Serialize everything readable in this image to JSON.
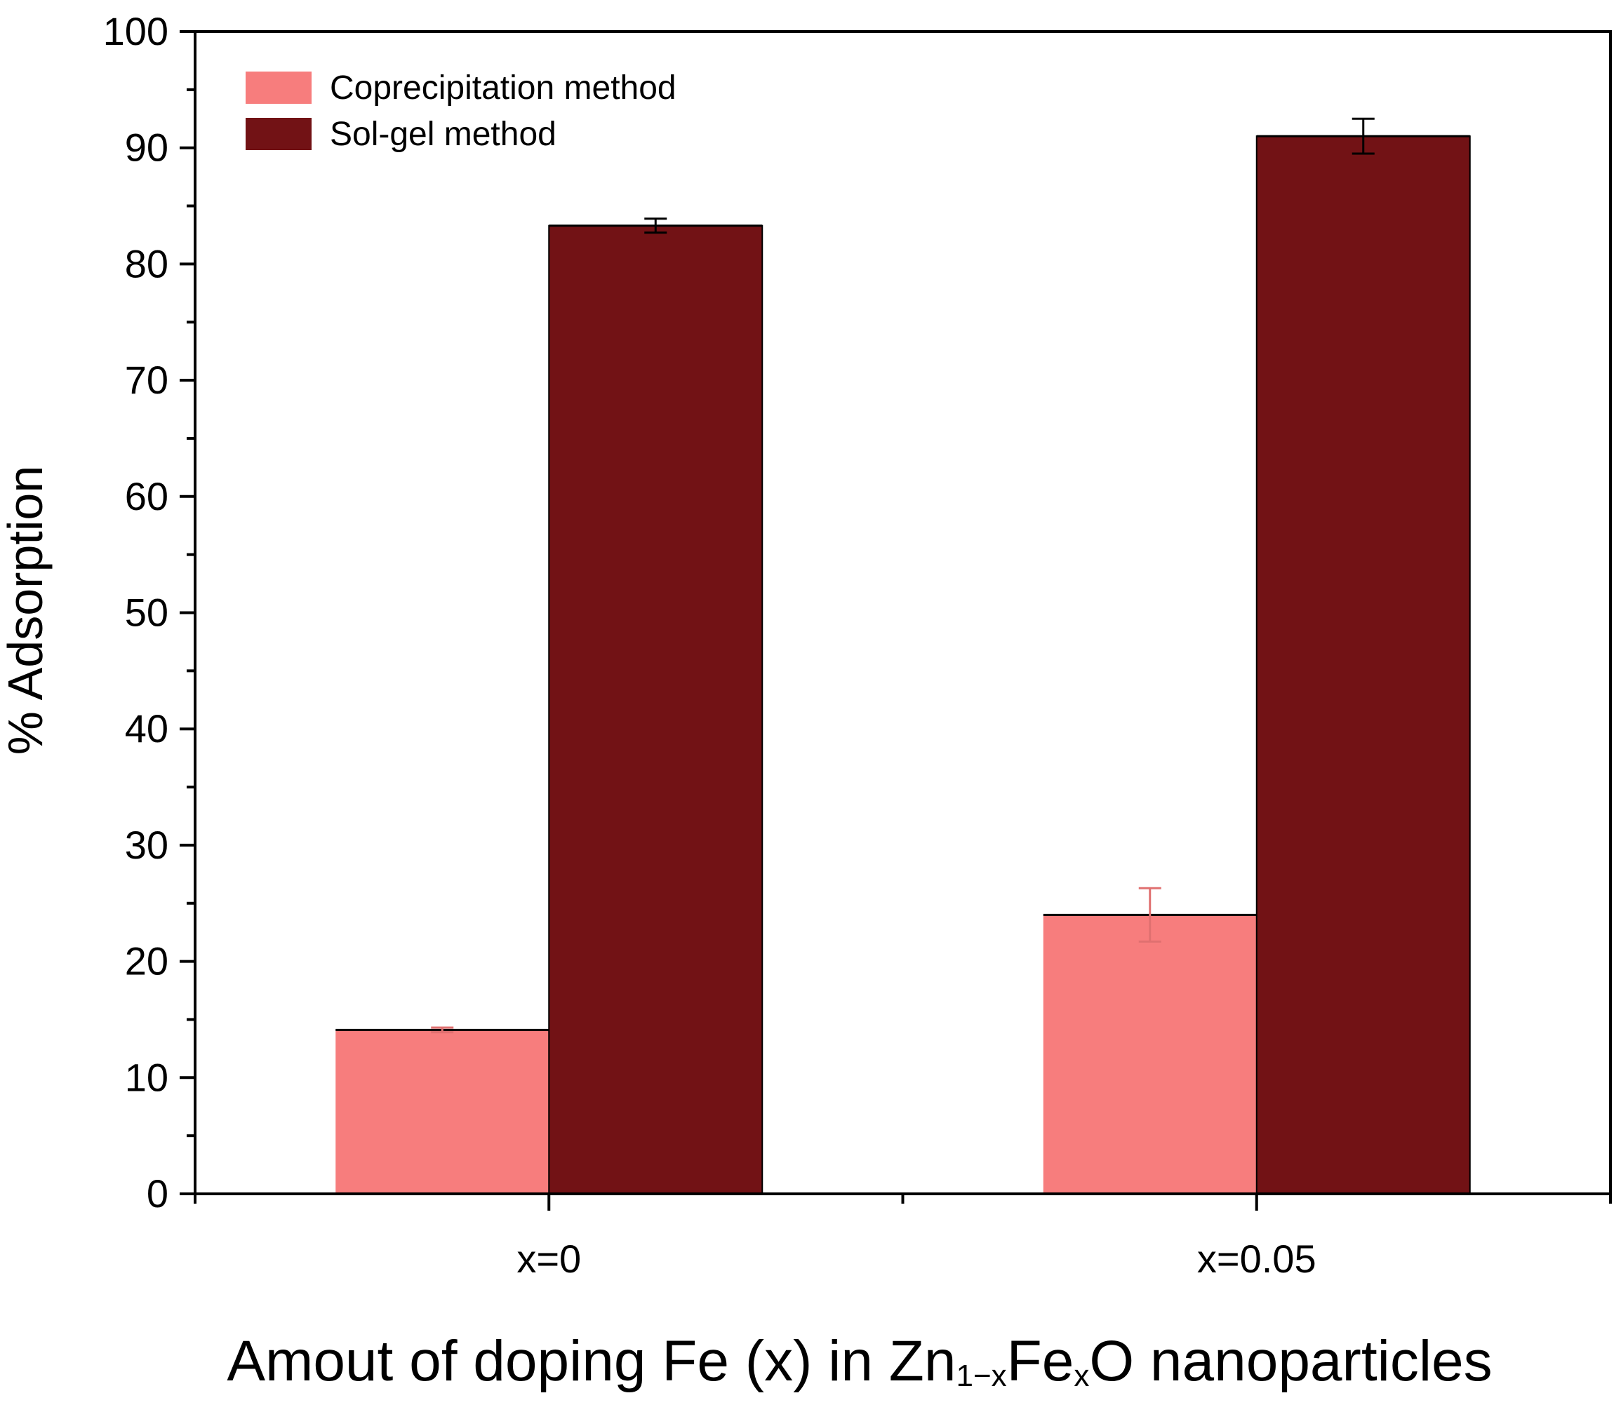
{
  "chart_data": {
    "type": "bar",
    "title": "",
    "xlabel_parts": [
      "Amout of doping Fe (x) in Zn",
      "1−x",
      "Fe",
      "x",
      "O nanoparticles"
    ],
    "ylabel": "% Adsorption",
    "ylim": [
      0,
      100
    ],
    "yticks": [
      0,
      10,
      20,
      30,
      40,
      50,
      60,
      70,
      80,
      90,
      100
    ],
    "categories": [
      "x=0",
      "x=0.05"
    ],
    "legend_position": "top-left",
    "series": [
      {
        "name": "Coprecipitation method",
        "color": "#F77D7D",
        "error_color": "#E07070",
        "values": [
          14.1,
          24.0
        ],
        "errors": [
          0.2,
          2.3
        ]
      },
      {
        "name": "Sol-gel method",
        "color": "#721215",
        "error_color": "#000000",
        "values": [
          83.3,
          91.0
        ],
        "errors": [
          0.6,
          1.5
        ]
      }
    ]
  }
}
